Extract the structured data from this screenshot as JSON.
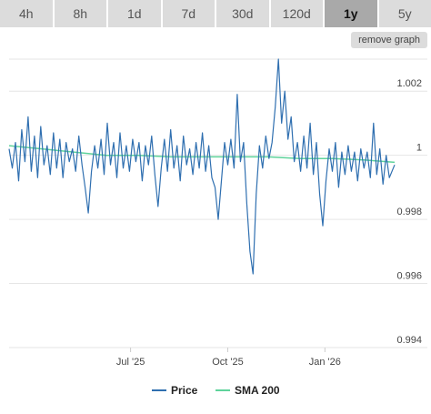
{
  "tabs": [
    {
      "label": "4h",
      "active": false
    },
    {
      "label": "8h",
      "active": false
    },
    {
      "label": "1d",
      "active": false
    },
    {
      "label": "7d",
      "active": false
    },
    {
      "label": "30d",
      "active": false
    },
    {
      "label": "120d",
      "active": false
    },
    {
      "label": "1y",
      "active": true
    },
    {
      "label": "5y",
      "active": false
    }
  ],
  "remove_graph_label": "remove graph",
  "colors": {
    "price": "#2f6fb0",
    "sma": "#5fd39b",
    "grid": "#e6e6e6",
    "tab_bg": "#dcdcdc",
    "tab_active_bg": "#a9a9a9"
  },
  "chart_data": {
    "type": "line",
    "x_range": [
      "2025-03-08",
      "2026-03-08"
    ],
    "ylim": [
      0.994,
      1.003
    ],
    "y_ticks": [
      {
        "value": 1.002,
        "label": "1.002"
      },
      {
        "value": 1.0,
        "label": "1"
      },
      {
        "value": 0.998,
        "label": "0.998"
      },
      {
        "value": 0.996,
        "label": "0.996"
      },
      {
        "value": 0.994,
        "label": "0.994"
      }
    ],
    "x_ticks": [
      {
        "date": "2025-07-01",
        "label": "Jul '25"
      },
      {
        "date": "2025-10-01",
        "label": "Oct '25"
      },
      {
        "date": "2026-01-01",
        "label": "Jan '26"
      }
    ],
    "grid": true,
    "legend_position": "bottom-center",
    "series": [
      {
        "name": "Price",
        "color": "#2f6fb0",
        "points": [
          [
            "2025-03-08",
            1.0002
          ],
          [
            "2025-03-11",
            0.9996
          ],
          [
            "2025-03-14",
            1.0004
          ],
          [
            "2025-03-17",
            0.9992
          ],
          [
            "2025-03-20",
            1.0008
          ],
          [
            "2025-03-23",
            0.9998
          ],
          [
            "2025-03-26",
            1.0012
          ],
          [
            "2025-03-29",
            0.9995
          ],
          [
            "2025-04-01",
            1.0006
          ],
          [
            "2025-04-04",
            0.9993
          ],
          [
            "2025-04-07",
            1.0009
          ],
          [
            "2025-04-10",
            0.9997
          ],
          [
            "2025-04-13",
            1.0003
          ],
          [
            "2025-04-16",
            0.9994
          ],
          [
            "2025-04-19",
            1.0007
          ],
          [
            "2025-04-22",
            0.9996
          ],
          [
            "2025-04-25",
            1.0005
          ],
          [
            "2025-04-28",
            0.9993
          ],
          [
            "2025-05-01",
            1.0004
          ],
          [
            "2025-05-04",
            0.9998
          ],
          [
            "2025-05-07",
            1.0002
          ],
          [
            "2025-05-10",
            0.9995
          ],
          [
            "2025-05-13",
            1.0006
          ],
          [
            "2025-05-16",
            0.9997
          ],
          [
            "2025-05-19",
            0.999
          ],
          [
            "2025-05-22",
            0.9982
          ],
          [
            "2025-05-25",
            0.9995
          ],
          [
            "2025-05-28",
            1.0003
          ],
          [
            "2025-05-31",
            0.9996
          ],
          [
            "2025-06-03",
            1.0005
          ],
          [
            "2025-06-06",
            0.9994
          ],
          [
            "2025-06-09",
            1.001
          ],
          [
            "2025-06-12",
            0.9997
          ],
          [
            "2025-06-15",
            1.0004
          ],
          [
            "2025-06-18",
            0.9993
          ],
          [
            "2025-06-21",
            1.0007
          ],
          [
            "2025-06-24",
            0.9996
          ],
          [
            "2025-06-27",
            1.0003
          ],
          [
            "2025-06-30",
            0.9995
          ],
          [
            "2025-07-03",
            1.0005
          ],
          [
            "2025-07-06",
            0.9998
          ],
          [
            "2025-07-09",
            1.0004
          ],
          [
            "2025-07-12",
            0.9992
          ],
          [
            "2025-07-15",
            1.0003
          ],
          [
            "2025-07-18",
            0.9997
          ],
          [
            "2025-07-21",
            1.0006
          ],
          [
            "2025-07-24",
            0.9994
          ],
          [
            "2025-07-27",
            0.9984
          ],
          [
            "2025-07-30",
            0.9996
          ],
          [
            "2025-08-02",
            1.0005
          ],
          [
            "2025-08-05",
            0.9995
          ],
          [
            "2025-08-08",
            1.0008
          ],
          [
            "2025-08-11",
            0.9996
          ],
          [
            "2025-08-14",
            1.0003
          ],
          [
            "2025-08-17",
            0.9992
          ],
          [
            "2025-08-20",
            1.0006
          ],
          [
            "2025-08-23",
            0.9997
          ],
          [
            "2025-08-26",
            1.0002
          ],
          [
            "2025-08-29",
            0.9994
          ],
          [
            "2025-09-01",
            1.0004
          ],
          [
            "2025-09-04",
            0.9996
          ],
          [
            "2025-09-07",
            1.0007
          ],
          [
            "2025-09-10",
            0.9995
          ],
          [
            "2025-09-13",
            1.0003
          ],
          [
            "2025-09-16",
            0.9993
          ],
          [
            "2025-09-19",
            0.999
          ],
          [
            "2025-09-22",
            0.998
          ],
          [
            "2025-09-25",
            0.9992
          ],
          [
            "2025-09-28",
            1.0004
          ],
          [
            "2025-10-01",
            0.9997
          ],
          [
            "2025-10-04",
            1.0005
          ],
          [
            "2025-10-07",
            0.9996
          ],
          [
            "2025-10-10",
            1.0019
          ],
          [
            "2025-10-13",
            0.9998
          ],
          [
            "2025-10-16",
            1.0004
          ],
          [
            "2025-10-19",
            0.9985
          ],
          [
            "2025-10-22",
            0.997
          ],
          [
            "2025-10-25",
            0.9963
          ],
          [
            "2025-10-28",
            0.9988
          ],
          [
            "2025-10-31",
            1.0003
          ],
          [
            "2025-11-03",
            0.9996
          ],
          [
            "2025-11-06",
            1.0006
          ],
          [
            "2025-11-09",
            0.9999
          ],
          [
            "2025-11-12",
            1.0004
          ],
          [
            "2025-11-15",
            1.0015
          ],
          [
            "2025-11-18",
            1.003
          ],
          [
            "2025-11-21",
            1.001
          ],
          [
            "2025-11-24",
            1.002
          ],
          [
            "2025-11-27",
            1.0005
          ],
          [
            "2025-11-30",
            1.0012
          ],
          [
            "2025-12-03",
            0.9998
          ],
          [
            "2025-12-06",
            1.0004
          ],
          [
            "2025-12-09",
            0.9995
          ],
          [
            "2025-12-12",
            1.0006
          ],
          [
            "2025-12-15",
            0.9996
          ],
          [
            "2025-12-18",
            1.001
          ],
          [
            "2025-12-21",
            0.9994
          ],
          [
            "2025-12-24",
            1.0004
          ],
          [
            "2025-12-27",
            0.9988
          ],
          [
            "2025-12-30",
            0.9978
          ],
          [
            "2026-01-02",
            0.9992
          ],
          [
            "2026-01-05",
            1.0002
          ],
          [
            "2026-01-08",
            0.9995
          ],
          [
            "2026-01-11",
            1.0004
          ],
          [
            "2026-01-14",
            0.999
          ],
          [
            "2026-01-17",
            1.0001
          ],
          [
            "2026-01-20",
            0.9994
          ],
          [
            "2026-01-23",
            1.0003
          ],
          [
            "2026-01-26",
            0.9995
          ],
          [
            "2026-01-29",
            1.0001
          ],
          [
            "2026-02-01",
            0.9992
          ],
          [
            "2026-02-04",
            1.0002
          ],
          [
            "2026-02-07",
            0.9996
          ],
          [
            "2026-02-10",
            1.0001
          ],
          [
            "2026-02-13",
            0.9993
          ],
          [
            "2026-02-16",
            1.001
          ],
          [
            "2026-02-19",
            0.9994
          ],
          [
            "2026-02-22",
            1.0002
          ],
          [
            "2026-02-25",
            0.9991
          ],
          [
            "2026-02-28",
            1.0
          ],
          [
            "2026-03-03",
            0.9993
          ],
          [
            "2026-03-08",
            0.9997
          ]
        ]
      },
      {
        "name": "SMA 200",
        "color": "#5fd39b",
        "points": [
          [
            "2025-03-08",
            1.0003
          ],
          [
            "2025-04-08",
            1.0002
          ],
          [
            "2025-05-08",
            1.0001
          ],
          [
            "2025-06-08",
            1.0
          ],
          [
            "2025-07-08",
            1.0
          ],
          [
            "2025-08-08",
            0.99995
          ],
          [
            "2025-09-08",
            0.99995
          ],
          [
            "2025-10-08",
            0.99995
          ],
          [
            "2025-11-08",
            0.99995
          ],
          [
            "2025-12-08",
            0.9999
          ],
          [
            "2026-01-08",
            0.9999
          ],
          [
            "2026-02-08",
            0.99985
          ],
          [
            "2026-03-08",
            0.99978
          ]
        ]
      }
    ]
  }
}
